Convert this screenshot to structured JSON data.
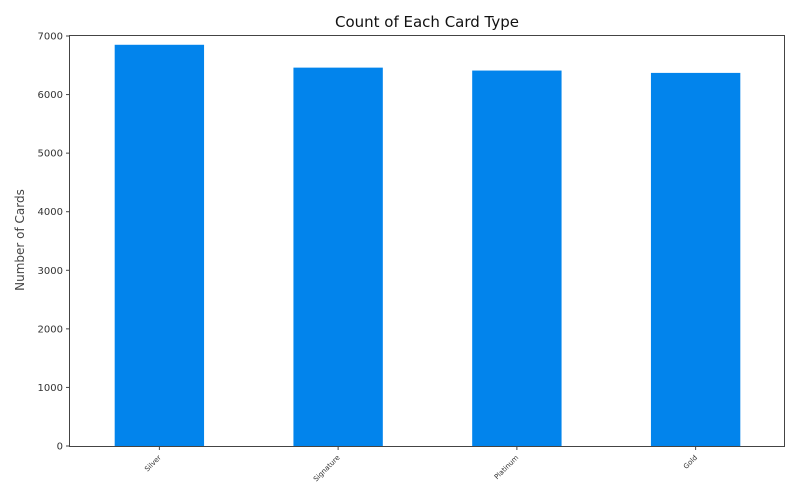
{
  "chart_data": {
    "type": "bar",
    "title": "Count of Each Card Type",
    "xlabel": "",
    "ylabel": "Number of Cards",
    "categories": [
      "Silver",
      "Signature",
      "Platinum",
      "Gold"
    ],
    "values": [
      6850,
      6460,
      6410,
      6370
    ],
    "ylim": [
      0,
      7000
    ],
    "yticks": [
      0,
      1000,
      2000,
      3000,
      4000,
      5000,
      6000,
      7000
    ],
    "bar_color": "#0284EC",
    "grid": false,
    "legend": "none"
  }
}
